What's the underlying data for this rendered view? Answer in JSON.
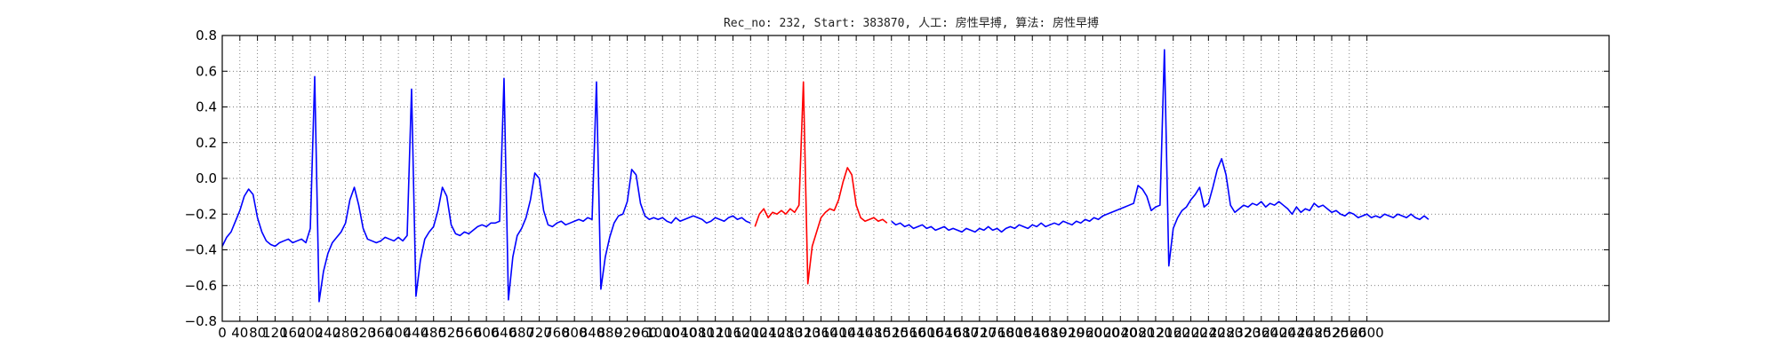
{
  "chart_data": {
    "type": "line",
    "title": "Rec_no: 232, Start: 383870, 人工: 房性早搏, 算法: 房性早搏",
    "xlabel": "",
    "ylabel": "",
    "xlim": [
      0,
      3150
    ],
    "ylim": [
      -0.8,
      0.8
    ],
    "grid": true,
    "y_ticks": [
      -0.8,
      -0.6,
      -0.4,
      -0.2,
      0.0,
      0.2,
      0.4,
      0.6,
      0.8
    ],
    "y_tick_labels": [
      "−0.8",
      "−0.6",
      "−0.4",
      "−0.2",
      "0.0",
      "0.2",
      "0.4",
      "0.6",
      "0.8"
    ],
    "x_ticks": [
      0,
      40,
      80,
      120,
      160,
      200,
      240,
      280,
      320,
      360,
      400,
      440,
      480,
      520,
      560,
      600,
      640,
      680,
      720,
      760,
      800,
      840,
      880,
      920,
      960,
      1000,
      1040,
      1080,
      1120,
      1160,
      1200,
      1240,
      1280,
      1320,
      1360,
      1400,
      1440,
      1480,
      1520,
      1560,
      1600,
      1640,
      1680,
      1720,
      1760,
      1800,
      1840,
      1880,
      1920,
      1960,
      2000,
      2040,
      2080,
      2120,
      2160,
      2200,
      2240,
      2280,
      2320,
      2360,
      2400,
      2440,
      2480,
      2520,
      2560,
      2600
    ],
    "series_colors": [
      "#0000ff",
      "#ff0000",
      "#0000ff"
    ],
    "series": [
      {
        "x": [
          0,
          10,
          20,
          30,
          40,
          50,
          60,
          70,
          80,
          90,
          100,
          110,
          120,
          130,
          140,
          150,
          160,
          170,
          180,
          190,
          200,
          210,
          220,
          230,
          240,
          250,
          260,
          270,
          280,
          290,
          300,
          310,
          320,
          330,
          340,
          350,
          360,
          370,
          380,
          390,
          400,
          410,
          420,
          430,
          440,
          450,
          460,
          470,
          480,
          490,
          500,
          510,
          520,
          530,
          540,
          550,
          560,
          570,
          580,
          590,
          600,
          610,
          620,
          630,
          640,
          650,
          660,
          670,
          680,
          690,
          700,
          710,
          720,
          730,
          740,
          750,
          760,
          770,
          780,
          790,
          800,
          810,
          820,
          830,
          840,
          850,
          860,
          870,
          880,
          890,
          900,
          910,
          920,
          930,
          940,
          950,
          960,
          970,
          980,
          990,
          1000,
          1010,
          1020,
          1030,
          1040,
          1050,
          1060,
          1070,
          1080,
          1090,
          1100,
          1110,
          1120,
          1130,
          1140,
          1150,
          1160,
          1170,
          1180,
          1190,
          1200
        ],
        "y": [
          -0.38,
          -0.33,
          -0.3,
          -0.24,
          -0.18,
          -0.1,
          -0.06,
          -0.09,
          -0.22,
          -0.3,
          -0.35,
          -0.37,
          -0.38,
          -0.36,
          -0.35,
          -0.34,
          -0.36,
          -0.35,
          -0.34,
          -0.36,
          -0.28,
          0.57,
          -0.69,
          -0.52,
          -0.42,
          -0.36,
          -0.33,
          -0.3,
          -0.25,
          -0.12,
          -0.05,
          -0.15,
          -0.28,
          -0.34,
          -0.35,
          -0.36,
          -0.35,
          -0.33,
          -0.34,
          -0.35,
          -0.33,
          -0.35,
          -0.32,
          0.5,
          -0.66,
          -0.46,
          -0.34,
          -0.3,
          -0.27,
          -0.18,
          -0.05,
          -0.1,
          -0.26,
          -0.31,
          -0.32,
          -0.3,
          -0.31,
          -0.29,
          -0.27,
          -0.26,
          -0.27,
          -0.25,
          -0.25,
          -0.24,
          0.56,
          -0.68,
          -0.44,
          -0.32,
          -0.28,
          -0.22,
          -0.12,
          0.03,
          0.0,
          -0.18,
          -0.26,
          -0.27,
          -0.25,
          -0.24,
          -0.26,
          -0.25,
          -0.24,
          -0.23,
          -0.24,
          -0.22,
          -0.23,
          0.54,
          -0.62,
          -0.44,
          -0.33,
          -0.25,
          -0.21,
          -0.2,
          -0.13,
          0.05,
          0.02,
          -0.14,
          -0.21,
          -0.23,
          -0.22,
          -0.23,
          -0.22,
          -0.24,
          -0.25,
          -0.22,
          -0.24,
          -0.23,
          -0.22,
          -0.21,
          -0.22,
          -0.23,
          -0.25,
          -0.24,
          -0.22,
          -0.23,
          -0.24,
          -0.22,
          -0.21,
          -0.23,
          -0.22,
          -0.24,
          -0.25
        ]
      },
      {
        "x": [
          1210,
          1220,
          1230,
          1240,
          1250,
          1260,
          1270,
          1280,
          1290,
          1300,
          1310,
          1320,
          1330,
          1340,
          1350,
          1360,
          1370,
          1380,
          1390,
          1400,
          1410,
          1420,
          1430,
          1440,
          1450,
          1460,
          1470,
          1480,
          1490,
          1500,
          1510
        ],
        "y": [
          -0.27,
          -0.2,
          -0.17,
          -0.22,
          -0.19,
          -0.2,
          -0.18,
          -0.2,
          -0.17,
          -0.19,
          -0.15,
          0.54,
          -0.59,
          -0.38,
          -0.3,
          -0.22,
          -0.19,
          -0.17,
          -0.18,
          -0.12,
          -0.02,
          0.06,
          0.02,
          -0.15,
          -0.22,
          -0.24,
          -0.23,
          -0.22,
          -0.24,
          -0.23,
          -0.25
        ]
      },
      {
        "x": [
          1520,
          1530,
          1540,
          1550,
          1560,
          1570,
          1580,
          1590,
          1600,
          1610,
          1620,
          1630,
          1640,
          1650,
          1660,
          1670,
          1680,
          1690,
          1700,
          1710,
          1720,
          1730,
          1740,
          1750,
          1760,
          1770,
          1780,
          1790,
          1800,
          1810,
          1820,
          1830,
          1840,
          1850,
          1860,
          1870,
          1880,
          1890,
          1900,
          1910,
          1920,
          1930,
          1940,
          1950,
          1960,
          1970,
          1980,
          1990,
          2000,
          2010,
          2020,
          2030,
          2040,
          2050,
          2060,
          2070,
          2080,
          2090,
          2100,
          2110,
          2120,
          2130,
          2140,
          2150,
          2160,
          2170,
          2180,
          2190,
          2200,
          2210,
          2220,
          2230,
          2240,
          2250,
          2260,
          2270,
          2280,
          2290,
          2300,
          2310,
          2320,
          2330,
          2340,
          2350,
          2360,
          2370,
          2380,
          2390,
          2400,
          2410,
          2420,
          2430,
          2440,
          2450,
          2460,
          2470,
          2480,
          2490,
          2500,
          2510,
          2520,
          2530,
          2540,
          2550,
          2560,
          2570,
          2580,
          2590,
          2600,
          2610,
          2620,
          2630,
          2640,
          2650,
          2660,
          2670,
          2680,
          2690,
          2700,
          2710,
          2720,
          2730,
          2740
        ],
        "y": [
          -0.24,
          -0.26,
          -0.25,
          -0.27,
          -0.26,
          -0.28,
          -0.27,
          -0.26,
          -0.28,
          -0.27,
          -0.29,
          -0.28,
          -0.27,
          -0.29,
          -0.28,
          -0.29,
          -0.3,
          -0.28,
          -0.29,
          -0.3,
          -0.28,
          -0.29,
          -0.27,
          -0.29,
          -0.28,
          -0.3,
          -0.28,
          -0.27,
          -0.28,
          -0.26,
          -0.27,
          -0.28,
          -0.26,
          -0.27,
          -0.25,
          -0.27,
          -0.26,
          -0.25,
          -0.26,
          -0.24,
          -0.25,
          -0.26,
          -0.24,
          -0.25,
          -0.23,
          -0.24,
          -0.22,
          -0.23,
          -0.21,
          -0.2,
          -0.19,
          -0.18,
          -0.17,
          -0.16,
          -0.15,
          -0.14,
          -0.04,
          -0.06,
          -0.1,
          -0.18,
          -0.16,
          -0.15,
          0.72,
          -0.49,
          -0.28,
          -0.22,
          -0.18,
          -0.16,
          -0.12,
          -0.09,
          -0.05,
          -0.16,
          -0.14,
          -0.05,
          0.05,
          0.11,
          0.02,
          -0.15,
          -0.19,
          -0.17,
          -0.15,
          -0.16,
          -0.14,
          -0.15,
          -0.13,
          -0.16,
          -0.14,
          -0.15,
          -0.13,
          -0.15,
          -0.17,
          -0.2,
          -0.16,
          -0.19,
          -0.17,
          -0.18,
          -0.14,
          -0.16,
          -0.15,
          -0.17,
          -0.19,
          -0.18,
          -0.2,
          -0.21,
          -0.19,
          -0.2,
          -0.22,
          -0.21,
          -0.2,
          -0.22,
          -0.21,
          -0.22,
          -0.2,
          -0.21,
          -0.22,
          -0.2,
          -0.21,
          -0.22,
          -0.2,
          -0.22,
          -0.23,
          -0.21,
          -0.23
        ]
      }
    ]
  }
}
